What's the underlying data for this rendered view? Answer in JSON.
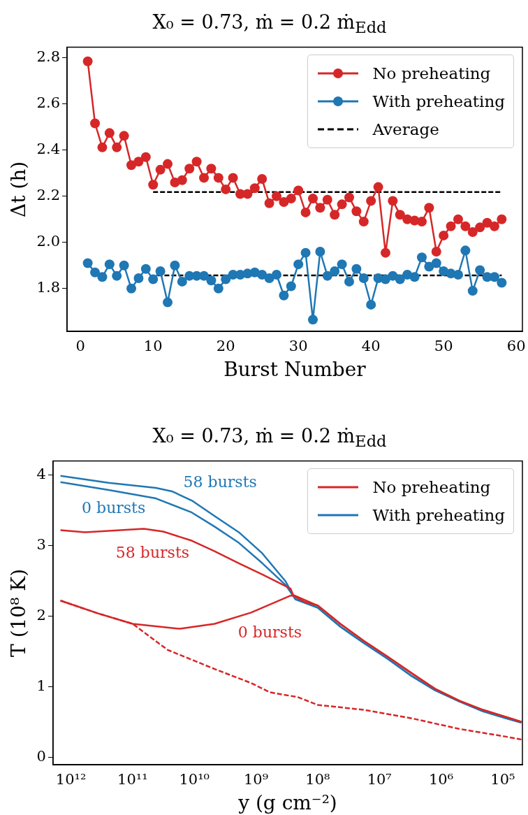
{
  "chart_data": [
    {
      "type": "line",
      "title": "X₀ = 0.73, ṁ = 0.2 ṁ$_{Edd}$",
      "xlabel": "Burst Number",
      "ylabel": "Δt (h)",
      "marker": "circle",
      "legend": "top right",
      "x": [
        1,
        2,
        3,
        4,
        5,
        6,
        7,
        8,
        9,
        10,
        11,
        12,
        13,
        14,
        15,
        16,
        17,
        18,
        19,
        20,
        21,
        22,
        23,
        24,
        25,
        26,
        27,
        28,
        29,
        30,
        31,
        32,
        33,
        34,
        35,
        36,
        37,
        38,
        39,
        40,
        41,
        42,
        43,
        44,
        45,
        46,
        47,
        48,
        49,
        50,
        51,
        52,
        53,
        54,
        55,
        56,
        57,
        58
      ],
      "series": [
        {
          "name": "No preheating",
          "color": "#d62728",
          "values": [
            2.785,
            2.516,
            2.412,
            2.474,
            2.412,
            2.462,
            2.335,
            2.35,
            2.37,
            2.25,
            2.315,
            2.34,
            2.26,
            2.27,
            2.32,
            2.35,
            2.28,
            2.32,
            2.28,
            2.23,
            2.28,
            2.21,
            2.21,
            2.235,
            2.275,
            2.17,
            2.2,
            2.175,
            2.19,
            2.225,
            2.13,
            2.19,
            2.15,
            2.185,
            2.12,
            2.165,
            2.195,
            2.135,
            2.09,
            2.18,
            2.24,
            1.955,
            2.18,
            2.12,
            2.1,
            2.095,
            2.09,
            2.15,
            1.96,
            2.03,
            2.07,
            2.1,
            2.07,
            2.045,
            2.065,
            2.085,
            2.07,
            2.1
          ]
        },
        {
          "name": "With preheating",
          "color": "#1f77b4",
          "values": [
            1.91,
            1.87,
            1.85,
            1.905,
            1.855,
            1.9,
            1.8,
            1.845,
            1.885,
            1.84,
            1.875,
            1.74,
            1.9,
            1.83,
            1.855,
            1.855,
            1.855,
            1.835,
            1.8,
            1.84,
            1.86,
            1.86,
            1.865,
            1.87,
            1.86,
            1.845,
            1.86,
            1.77,
            1.81,
            1.905,
            1.955,
            1.665,
            1.96,
            1.855,
            1.875,
            1.905,
            1.83,
            1.885,
            1.845,
            1.73,
            1.845,
            1.84,
            1.855,
            1.84,
            1.86,
            1.85,
            1.935,
            1.895,
            1.91,
            1.875,
            1.865,
            1.86,
            1.965,
            1.79,
            1.88,
            1.85,
            1.85,
            1.825
          ]
        },
        {
          "name": "Average",
          "color": "#000000",
          "x": [
            10,
            58
          ],
          "values": [
            2.218,
            2.218
          ],
          "line_style": "dashed",
          "marker": "none"
        },
        {
          "color": "#000000",
          "x": [
            10.6,
            58
          ],
          "values": [
            1.857,
            1.857
          ],
          "line_style": "dashed",
          "marker": "none"
        }
      ],
      "xlim": [
        -1.85,
        60.85
      ],
      "xticks": [
        0,
        10,
        20,
        30,
        40,
        50,
        60
      ],
      "ylim": [
        1.614,
        2.846
      ],
      "yticks": [
        {
          "value": 1.8,
          "label": "1.8"
        },
        {
          "value": 2,
          "label": "2.0"
        },
        {
          "value": 2.2,
          "label": "2.2"
        },
        {
          "value": 2.4,
          "label": "2.4"
        },
        {
          "value": 2.6,
          "label": "2.6"
        },
        {
          "value": 2.8,
          "label": "2.8"
        }
      ]
    },
    {
      "type": "line",
      "title": "X₀ = 0.73, ṁ = 0.2 ṁ$_{Edd}$",
      "xlabel": "y (g cm⁻²)",
      "ylabel": "T (10⁸ K)",
      "marker": "none",
      "legend": "top right",
      "log": "x",
      "series": [
        {
          "name": "No preheating",
          "color": "#d62728",
          "x": [
            1480000000000.0,
            590000000000.0,
            66000000000.0,
            32000000000.0,
            11000000000.0,
            4700000000.0,
            1900000000.0,
            790000000.0,
            275000000.0,
            250000000.0,
            100000000.0,
            43000000.0,
            18000000.0,
            7200000.0,
            3000000.0,
            1260000.0,
            510000.0,
            210000.0,
            89000.0,
            50000.0
          ],
          "values": [
            3.22,
            3.19,
            3.24,
            3.2,
            3.07,
            2.92,
            2.75,
            2.59,
            2.39,
            2.3,
            2.15,
            1.89,
            1.65,
            1.42,
            1.19,
            0.97,
            0.8,
            0.67,
            0.57,
            0.5
          ]
        },
        {
          "color": "#d62728",
          "x": [
            1480000000000.0,
            370000000000.0,
            100000000000.0,
            17000000000.0,
            4700000000.0,
            1200000000.0,
            275000000.0,
            250000000.0,
            160000000.0,
            100000000.0,
            43000000.0,
            18000000.0,
            7200000.0,
            3000000.0,
            1260000.0,
            510000.0,
            210000.0,
            89000.0,
            50000.0
          ],
          "values": [
            2.22,
            2.04,
            1.89,
            1.82,
            1.89,
            2.05,
            2.29,
            2.29,
            2.2,
            2.15,
            1.89,
            1.65,
            1.42,
            1.19,
            0.97,
            0.8,
            0.67,
            0.57,
            0.5
          ]
        },
        {
          "color": "#d62728",
          "line_style": "dashed",
          "x": [
            1480000000000.0,
            370000000000.0,
            100000000000.0,
            27000000000.0,
            4700000000.0,
            1200000000.0,
            600000000.0,
            210000000.0,
            100000000.0,
            18000000.0,
            3000000.0,
            510000.0,
            89000.0,
            50000.0
          ],
          "values": [
            2.22,
            2.04,
            1.89,
            1.52,
            1.25,
            1.05,
            0.92,
            0.85,
            0.74,
            0.67,
            0.55,
            0.4,
            0.29,
            0.25
          ]
        },
        {
          "color": "#1f77b4",
          "x": [
            1480000000000.0,
            245000000000.0,
            42000000000.0,
            23000000000.0,
            11000000000.0,
            4700000000.0,
            1900000000.0,
            790000000.0,
            330000000.0,
            230000000.0,
            100000000.0,
            43000000.0,
            18000000.0,
            7200000.0,
            3000000.0,
            1260000.0,
            510000.0,
            210000.0,
            89000.0,
            50000.0
          ],
          "values": [
            3.99,
            3.89,
            3.82,
            3.77,
            3.64,
            3.42,
            3.19,
            2.89,
            2.49,
            2.24,
            2.12,
            1.85,
            1.62,
            1.39,
            1.15,
            0.95,
            0.79,
            0.65,
            0.55,
            0.49
          ]
        },
        {
          "name": "With preheating",
          "color": "#1f77b4",
          "x": [
            1480000000000.0,
            245000000000.0,
            42000000000.0,
            11000000000.0,
            4700000000.0,
            1900000000.0,
            790000000.0,
            330000000.0,
            230000000.0,
            100000000.0,
            43000000.0,
            18000000.0,
            7200000.0,
            3000000.0,
            1260000.0,
            510000.0,
            210000.0,
            89000.0,
            50000.0
          ],
          "values": [
            3.9,
            3.79,
            3.67,
            3.47,
            3.27,
            3.04,
            2.75,
            2.44,
            2.24,
            2.12,
            1.85,
            1.62,
            1.39,
            1.15,
            0.95,
            0.79,
            0.65,
            0.55,
            0.49
          ]
        }
      ],
      "xlim": [
        1950000000000.0,
        48000.0
      ],
      "xticks": [
        {
          "value": 1000000000000.0,
          "label": "10¹²"
        },
        {
          "value": 100000000000.0,
          "label": "10¹¹"
        },
        {
          "value": 10000000000.0,
          "label": "10¹⁰"
        },
        {
          "value": 1000000000.0,
          "label": "10⁹"
        },
        {
          "value": 100000000.0,
          "label": "10⁸"
        },
        {
          "value": 10000000.0,
          "label": "10⁷"
        },
        {
          "value": 1000000.0,
          "label": "10⁶"
        },
        {
          "value": 100000.0,
          "label": "10⁵"
        }
      ],
      "ylim": [
        -0.11,
        4.2
      ],
      "yticks": [
        0,
        1,
        2,
        3,
        4
      ],
      "annotations": [
        "58 bursts",
        "0 bursts",
        "58 bursts",
        "0 bursts"
      ]
    }
  ]
}
